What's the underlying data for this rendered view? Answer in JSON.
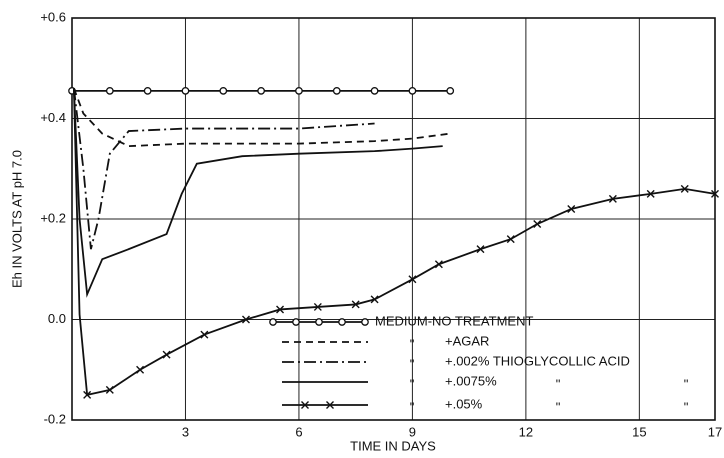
{
  "chart_data": {
    "type": "line",
    "ylabel": "Eh IN VOLTS AT pH 7.0",
    "xlabel": "TIME IN DAYS",
    "xlim": [
      0,
      17
    ],
    "xticks": [
      3,
      6,
      9,
      12,
      15,
      17
    ],
    "ylim": [
      -0.2,
      0.6
    ],
    "yticks": [
      {
        "value": -0.2,
        "label": "-0.2"
      },
      {
        "value": 0,
        "label": "0.0"
      },
      {
        "value": 0.2,
        "label": "+0.2"
      },
      {
        "value": 0.4,
        "label": "+0.4"
      },
      {
        "value": 0.6,
        "label": "+0.6"
      }
    ],
    "grid": true,
    "series": [
      {
        "name": "MEDIUM-NO TREATMENT",
        "color": "#111111",
        "dash": "solid",
        "marker": "circle",
        "ditto": [],
        "x": [
          0,
          1,
          2,
          3,
          4,
          5,
          6,
          7,
          8,
          9,
          10
        ],
        "values": [
          0.455,
          0.455,
          0.455,
          0.455,
          0.455,
          0.455,
          0.455,
          0.455,
          0.455,
          0.455,
          0.455
        ]
      },
      {
        "name": "+AGAR",
        "color": "#111111",
        "dash": "dashed",
        "marker": "none",
        "ditto": [
          "\""
        ],
        "x": [
          0.05,
          0.3,
          0.8,
          1.5,
          3,
          6,
          8,
          9,
          10
        ],
        "values": [
          0.46,
          0.41,
          0.37,
          0.345,
          0.35,
          0.35,
          0.355,
          0.36,
          0.37
        ]
      },
      {
        "name": "+.002% THIOGLYCOLLIC ACID",
        "color": "#111111",
        "dash": "dashdot",
        "marker": "none",
        "ditto": [
          "\""
        ],
        "x": [
          0.05,
          0.3,
          0.5,
          0.7,
          1,
          1.5,
          3,
          6,
          8
        ],
        "values": [
          0.46,
          0.3,
          0.14,
          0.2,
          0.33,
          0.375,
          0.38,
          0.38,
          0.39
        ]
      },
      {
        "name": "+.0075%",
        "color": "#111111",
        "dash": "solid",
        "marker": "none",
        "ditto": [
          "\"",
          "\"",
          "\""
        ],
        "x": [
          0.05,
          0.2,
          0.4,
          0.8,
          1.5,
          2.5,
          2.9,
          3.3,
          4.5,
          6,
          8,
          9,
          9.8
        ],
        "values": [
          0.46,
          0.2,
          0.05,
          0.12,
          0.14,
          0.17,
          0.25,
          0.31,
          0.325,
          0.33,
          0.335,
          0.34,
          0.345
        ]
      },
      {
        "name": "+.05%",
        "color": "#111111",
        "dash": "solid",
        "marker": "x",
        "ditto": [
          "\"",
          "\"",
          "\""
        ],
        "x": [
          0.05,
          0.2,
          0.4,
          1,
          1.8,
          2.5,
          3.5,
          4.6,
          5.5,
          6.5,
          7.5,
          8,
          9,
          9.7,
          10.8,
          11.6,
          12.3,
          13.2,
          14.3,
          15.3,
          16.2,
          17
        ],
        "values": [
          0.46,
          0.01,
          -0.15,
          -0.14,
          -0.1,
          -0.07,
          -0.03,
          0.0,
          0.02,
          0.025,
          0.03,
          0.04,
          0.08,
          0.11,
          0.14,
          0.16,
          0.19,
          0.22,
          0.24,
          0.25,
          0.26,
          0.25
        ]
      }
    ]
  }
}
